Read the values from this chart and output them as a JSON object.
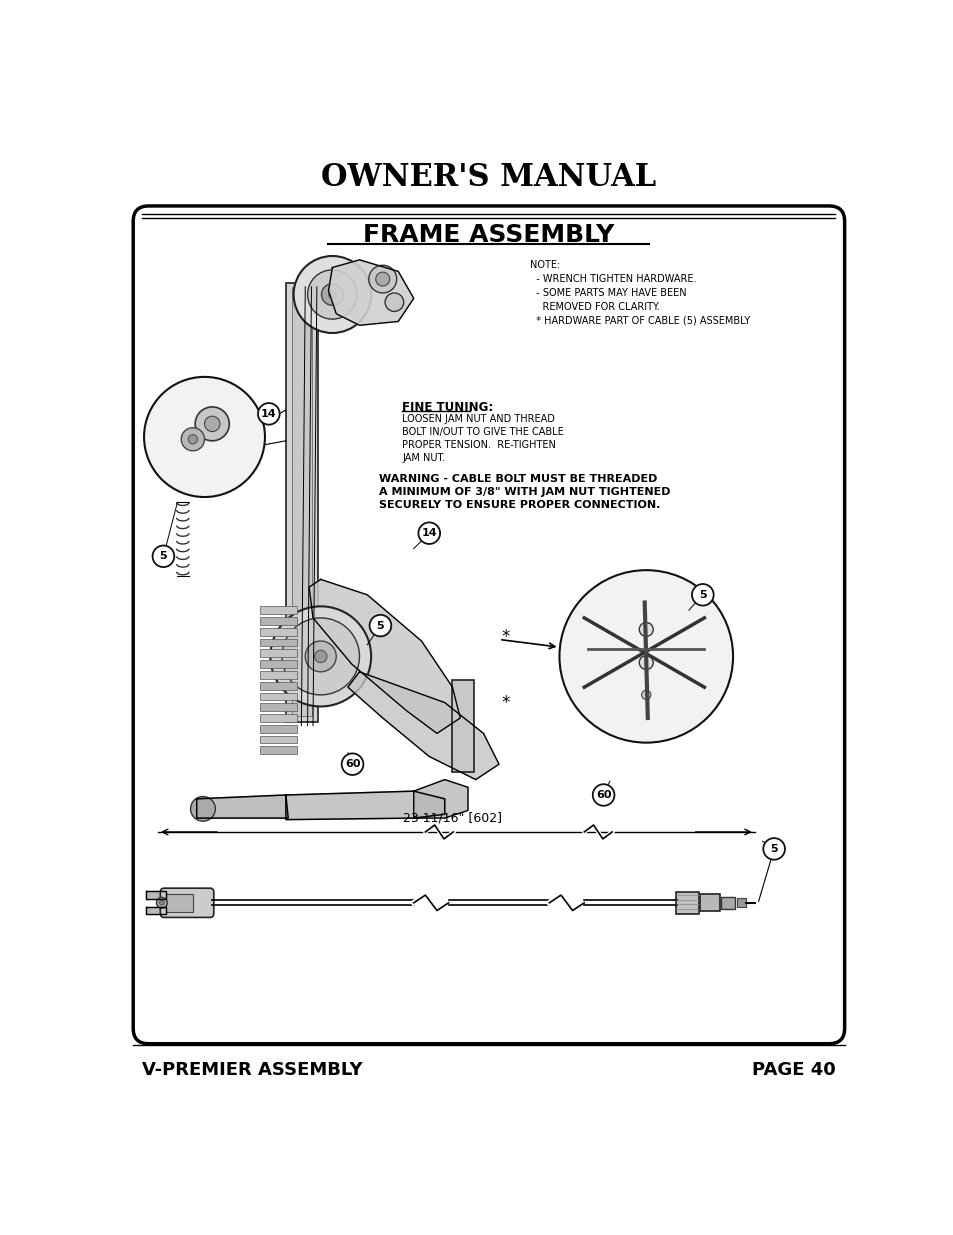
{
  "page_title": "OWNER'S MANUAL",
  "section_title": "FRAME ASSEMBLY",
  "footer_left": "V-PREMIER ASSEMBLY",
  "footer_right": "PAGE 40",
  "bg_color": "#ffffff",
  "border_color": "#000000",
  "text_color": "#000000",
  "note_text": "NOTE:\n  - WRENCH TIGHTEN HARDWARE.\n  - SOME PARTS MAY HAVE BEEN\n    REMOVED FOR CLARITY.\n  * HARDWARE PART OF CABLE (5) ASSEMBLY",
  "fine_tuning_title": "FINE TUNING:",
  "fine_tuning_body": "LOOSEN JAM NUT AND THREAD\nBOLT IN/OUT TO GIVE THE CABLE\nPROPER TENSION.  RE-TIGHTEN\nJAM NUT.",
  "warning_text": "WARNING - CABLE BOLT MUST BE THREADED\nA MINIMUM OF 3/8\" WITH JAM NUT TIGHTENED\nSECURELY TO ENSURE PROPER CONNECTION.",
  "dimension_label": "23 11/16\" [602]",
  "part_labels": [
    [
      193,
      345,
      "14"
    ],
    [
      57,
      530,
      "5"
    ],
    [
      400,
      500,
      "14"
    ],
    [
      337,
      620,
      "5"
    ],
    [
      753,
      580,
      "5"
    ],
    [
      301,
      800,
      "60"
    ],
    [
      625,
      840,
      "60"
    ],
    [
      845,
      910,
      "5"
    ]
  ]
}
